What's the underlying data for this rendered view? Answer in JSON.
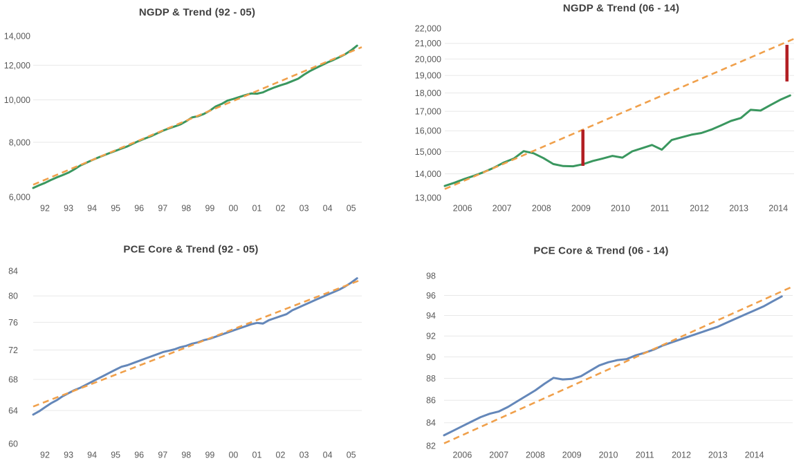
{
  "figure": {
    "background": "#ffffff",
    "colors": {
      "ngdp_actual": "#3a975f",
      "pce_actual": "#6487b9",
      "trend": "#f0a04b",
      "gap_bar": "#b21e23",
      "gridline": "#e8e8e8",
      "axis_text": "#595959",
      "title_text": "#404040"
    }
  },
  "chart_data": [
    {
      "type": "line",
      "title": "NGDP & Trend (92 - 05)",
      "y_scale": "log",
      "grid": true,
      "legend": "none",
      "y_domain": [
        6000,
        14000
      ],
      "x_domain": [
        1992.0,
        2005.95
      ],
      "y_ticks": [
        [
          "14,000",
          14000
        ],
        [
          "12,000",
          12000
        ],
        [
          "10,000",
          10000
        ],
        [
          "8,000",
          8000
        ],
        [
          "6,000",
          6000
        ]
      ],
      "x_ticks": [
        [
          "92",
          1992.5
        ],
        [
          "93",
          1993.5
        ],
        [
          "94",
          1994.5
        ],
        [
          "95",
          1995.5
        ],
        [
          "96",
          1996.5
        ],
        [
          "97",
          1997.5
        ],
        [
          "98",
          1998.5
        ],
        [
          "99",
          1999.5
        ],
        [
          "00",
          2000.5
        ],
        [
          "01",
          2001.5
        ],
        [
          "02",
          2002.5
        ],
        [
          "03",
          2003.5
        ],
        [
          "04",
          2004.5
        ],
        [
          "05",
          2005.5
        ]
      ],
      "series": [
        {
          "name": "NGDP",
          "color_key": "ngdp_actual",
          "dash": false,
          "t0": 1992.0,
          "dt": 0.25,
          "values": [
            6290,
            6380,
            6460,
            6560,
            6650,
            6730,
            6820,
            6940,
            7080,
            7180,
            7280,
            7380,
            7470,
            7560,
            7650,
            7740,
            7830,
            7950,
            8060,
            8160,
            8260,
            8380,
            8500,
            8600,
            8690,
            8790,
            8940,
            9120,
            9180,
            9290,
            9450,
            9660,
            9790,
            9960,
            10050,
            10150,
            10250,
            10340,
            10330,
            10400,
            10550,
            10680,
            10800,
            10900,
            11040,
            11180,
            11420,
            11640,
            11820,
            12000,
            12180,
            12340,
            12520,
            12720,
            12980,
            13300
          ]
        },
        {
          "name": "Trend",
          "color_key": "trend",
          "dash": true,
          "t": [
            1992.0,
            2005.95
          ],
          "values": [
            6400,
            13200
          ]
        }
      ],
      "bars": []
    },
    {
      "type": "line",
      "title": "NGDP & Trend (06 - 14)",
      "y_scale": "log",
      "grid": true,
      "legend": "none",
      "y_domain": [
        13000,
        22000
      ],
      "x_domain": [
        2006.0,
        2014.85
      ],
      "y_ticks": [
        [
          "22,000",
          22000
        ],
        [
          "21,000",
          21000
        ],
        [
          "20,000",
          20000
        ],
        [
          "19,000",
          19000
        ],
        [
          "18,000",
          18000
        ],
        [
          "17,000",
          17000
        ],
        [
          "16,000",
          16000
        ],
        [
          "15,000",
          15000
        ],
        [
          "14,000",
          14000
        ],
        [
          "13,000",
          13000
        ]
      ],
      "x_ticks": [
        [
          "2006",
          2006.45
        ],
        [
          "2007",
          2007.45
        ],
        [
          "2008",
          2008.45
        ],
        [
          "2009",
          2009.45
        ],
        [
          "2010",
          2010.45
        ],
        [
          "2011",
          2011.45
        ],
        [
          "2012",
          2012.45
        ],
        [
          "2013",
          2013.45
        ],
        [
          "2014",
          2014.45
        ]
      ],
      "series": [
        {
          "name": "NGDP",
          "color_key": "ngdp_actual",
          "dash": false,
          "t0": 2006.0,
          "dt": 0.25,
          "values": [
            13480,
            13620,
            13780,
            13920,
            14080,
            14270,
            14500,
            14680,
            15020,
            14920,
            14700,
            14430,
            14340,
            14330,
            14420,
            14570,
            14680,
            14800,
            14720,
            15010,
            15160,
            15310,
            15090,
            15550,
            15680,
            15810,
            15890,
            16060,
            16270,
            16500,
            16650,
            17080,
            17040,
            17330,
            17620,
            17860
          ]
        },
        {
          "name": "Trend",
          "color_key": "trend",
          "dash": true,
          "t": [
            2006.0,
            2014.85
          ],
          "values": [
            13350,
            21300
          ]
        }
      ],
      "bars": [
        {
          "t": 2009.5,
          "v0": 14350,
          "v1": 16050
        },
        {
          "t": 2014.67,
          "v0": 18650,
          "v1": 20900
        }
      ]
    },
    {
      "type": "line",
      "title": "PCE Core & Trend (92 - 05)",
      "y_scale": "log",
      "grid": true,
      "legend": "none",
      "y_domain": [
        60,
        84
      ],
      "x_domain": [
        1992.0,
        2005.95
      ],
      "y_ticks": [
        [
          "84",
          84
        ],
        [
          "80",
          80
        ],
        [
          "76",
          76
        ],
        [
          "72",
          72
        ],
        [
          "68",
          68
        ],
        [
          "64",
          64
        ],
        [
          "60",
          60
        ]
      ],
      "x_ticks": [
        [
          "92",
          1992.5
        ],
        [
          "93",
          1993.5
        ],
        [
          "94",
          1994.5
        ],
        [
          "95",
          1995.5
        ],
        [
          "96",
          1996.5
        ],
        [
          "97",
          1997.5
        ],
        [
          "98",
          1998.5
        ],
        [
          "99",
          1999.5
        ],
        [
          "00",
          2000.5
        ],
        [
          "01",
          2001.5
        ],
        [
          "02",
          2002.5
        ],
        [
          "03",
          2003.5
        ],
        [
          "04",
          2004.5
        ],
        [
          "05",
          2005.5
        ]
      ],
      "series": [
        {
          "name": "PCE Core",
          "color_key": "pce_actual",
          "dash": false,
          "t0": 1992.0,
          "dt": 0.25,
          "values": [
            63.5,
            63.9,
            64.4,
            64.9,
            65.3,
            65.8,
            66.2,
            66.6,
            66.9,
            67.3,
            67.7,
            68.1,
            68.5,
            68.9,
            69.3,
            69.7,
            69.9,
            70.2,
            70.5,
            70.8,
            71.1,
            71.4,
            71.7,
            71.9,
            72.1,
            72.4,
            72.6,
            72.9,
            73.1,
            73.4,
            73.6,
            73.9,
            74.2,
            74.5,
            74.8,
            75.1,
            75.4,
            75.7,
            75.9,
            75.8,
            76.3,
            76.6,
            76.9,
            77.2,
            77.8,
            78.2,
            78.6,
            79.0,
            79.4,
            79.8,
            80.2,
            80.6,
            81.0,
            81.5,
            82.1,
            82.8
          ]
        },
        {
          "name": "Trend",
          "color_key": "trend",
          "dash": true,
          "t": [
            1992.0,
            2005.95
          ],
          "values": [
            64.5,
            82.6
          ]
        }
      ],
      "bars": []
    },
    {
      "type": "line",
      "title": "PCE Core & Trend (06 - 14)",
      "y_scale": "log",
      "grid": true,
      "legend": "none",
      "y_domain": [
        82,
        98
      ],
      "x_domain": [
        2005.5,
        2015.05
      ],
      "y_ticks": [
        [
          "98",
          98
        ],
        [
          "96",
          96
        ],
        [
          "94",
          94
        ],
        [
          "92",
          92
        ],
        [
          "90",
          90
        ],
        [
          "88",
          88
        ],
        [
          "86",
          86
        ],
        [
          "84",
          84
        ],
        [
          "82",
          82
        ]
      ],
      "x_ticks": [
        [
          "2006",
          2006.0
        ],
        [
          "2007",
          2007.0
        ],
        [
          "2008",
          2008.0
        ],
        [
          "2009",
          2009.0
        ],
        [
          "2010",
          2010.0
        ],
        [
          "2011",
          2011.0
        ],
        [
          "2012",
          2012.0
        ],
        [
          "2013",
          2013.0
        ],
        [
          "2014",
          2014.0
        ]
      ],
      "series": [
        {
          "name": "PCE Core",
          "color_key": "pce_actual",
          "dash": false,
          "t0": 2005.5,
          "dt": 0.25,
          "values": [
            82.9,
            83.3,
            83.7,
            84.1,
            84.5,
            84.8,
            85.0,
            85.4,
            85.9,
            86.4,
            86.9,
            87.5,
            88.05,
            87.9,
            87.95,
            88.2,
            88.7,
            89.2,
            89.5,
            89.7,
            89.8,
            90.15,
            90.4,
            90.7,
            91.1,
            91.4,
            91.7,
            92.0,
            92.3,
            92.6,
            92.9,
            93.3,
            93.7,
            94.1,
            94.5,
            94.9,
            95.4,
            95.9
          ]
        },
        {
          "name": "Trend",
          "color_key": "trend",
          "dash": true,
          "t": [
            2005.5,
            2015.05
          ],
          "values": [
            82.2,
            96.9
          ]
        }
      ],
      "bars": []
    }
  ]
}
